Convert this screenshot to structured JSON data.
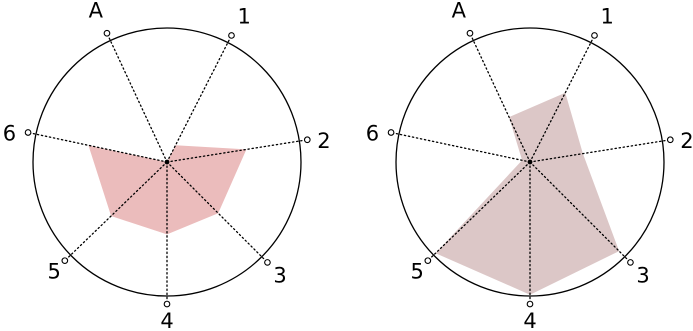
{
  "chart_data": [
    {
      "type": "radar",
      "axes": [
        "A",
        "1",
        "2",
        "3",
        "4",
        "5",
        "6"
      ],
      "fill_color": "#ebbcbc",
      "relative_values": [
        0.0,
        0.14,
        0.6,
        0.54,
        0.54,
        0.58,
        0.6
      ]
    },
    {
      "type": "radar",
      "axes": [
        "A",
        "1",
        "2",
        "3",
        "4",
        "5",
        "6"
      ],
      "fill_color": "#dcc7c7",
      "relative_values": [
        0.37,
        0.58,
        0.4,
        0.94,
        0.99,
        0.98,
        0.06
      ]
    }
  ],
  "colors": {
    "circle": "#000000",
    "spoke": "#000000",
    "center": "#000000"
  }
}
